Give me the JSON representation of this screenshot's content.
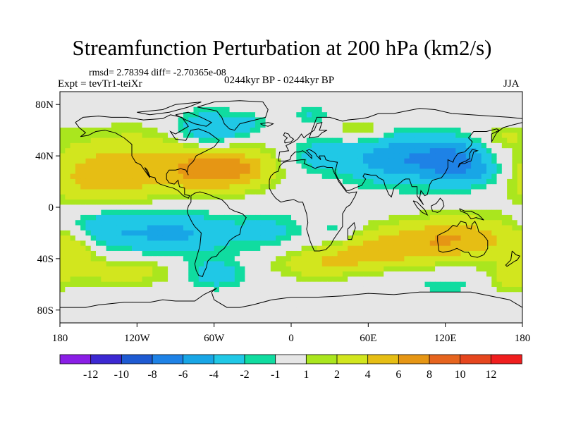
{
  "header": {
    "title": "Streamfunction Perturbation at 200 hPa (km2/s)",
    "stats": "rmsd= 2.78394 diff= -2.70365e-08",
    "experiment": "Expt = tevTr1-teiXr",
    "period": "0244kyr BP - 0244kyr BP",
    "season": "JJA"
  },
  "chart_data": {
    "type": "heatmap",
    "title": "Streamfunction Perturbation at 200 hPa (km2/s)",
    "xlabel": "",
    "ylabel": "",
    "xlim": [
      -180,
      180
    ],
    "ylim": [
      -90,
      90
    ],
    "xticks": [
      {
        "value": -180,
        "label": "180"
      },
      {
        "value": -120,
        "label": "120W"
      },
      {
        "value": -60,
        "label": "60W"
      },
      {
        "value": 0,
        "label": "0"
      },
      {
        "value": 60,
        "label": "60E"
      },
      {
        "value": 120,
        "label": "120E"
      },
      {
        "value": 180,
        "label": "180"
      }
    ],
    "yticks": [
      {
        "value": 80,
        "label": "80N"
      },
      {
        "value": 40,
        "label": "40N"
      },
      {
        "value": 0,
        "label": "0"
      },
      {
        "value": -40,
        "label": "40S"
      },
      {
        "value": -80,
        "label": "80S"
      }
    ],
    "colorbar": {
      "boundaries": [
        -12,
        -10,
        -8,
        -6,
        -4,
        -2,
        -1,
        1,
        2,
        4,
        6,
        8,
        10,
        12
      ],
      "labels": [
        "-12",
        "-10",
        "-8",
        "-6",
        "-4",
        "-2",
        "-1",
        "1",
        "2",
        "4",
        "6",
        "8",
        "10",
        "12"
      ],
      "colors": [
        "#8a1ee6",
        "#3c28d2",
        "#1e5ad2",
        "#1e82e6",
        "#18a6e6",
        "#20c8e6",
        "#10dca0",
        "#e6e6e6",
        "#aae61e",
        "#d2e61e",
        "#e6be14",
        "#e69614",
        "#e6641e",
        "#e6461e",
        "#f01e1e"
      ]
    },
    "field": [
      {
        "lon": -115,
        "lat": 35,
        "value": 4.0,
        "sx": 50,
        "sy": 18
      },
      {
        "lon": -65,
        "lat": 28,
        "value": 4.5,
        "sx": 22,
        "sy": 12
      },
      {
        "lon": -35,
        "lat": 30,
        "value": 3.5,
        "sx": 18,
        "sy": 10
      },
      {
        "lon": -150,
        "lat": 20,
        "value": 3.0,
        "sx": 30,
        "sy": 14
      },
      {
        "lon": -65,
        "lat": 60,
        "value": -5.0,
        "sx": 18,
        "sy": 10
      },
      {
        "lon": -35,
        "lat": 65,
        "value": -2.5,
        "sx": 10,
        "sy": 6
      },
      {
        "lon": 15,
        "lat": 72,
        "value": -2.0,
        "sx": 10,
        "sy": 5
      },
      {
        "lon": 55,
        "lat": 60,
        "value": 3.0,
        "sx": 14,
        "sy": 6
      },
      {
        "lon": 20,
        "lat": 40,
        "value": -2.5,
        "sx": 14,
        "sy": 8
      },
      {
        "lon": 85,
        "lat": 38,
        "value": -5.5,
        "sx": 35,
        "sy": 14
      },
      {
        "lon": 130,
        "lat": 35,
        "value": -5.0,
        "sx": 20,
        "sy": 12
      },
      {
        "lon": 165,
        "lat": 55,
        "value": 2.0,
        "sx": 12,
        "sy": 6
      },
      {
        "lon": 150,
        "lat": 25,
        "value": -1.8,
        "sx": 14,
        "sy": 8
      },
      {
        "lon": -95,
        "lat": -20,
        "value": -4.5,
        "sx": 40,
        "sy": 12
      },
      {
        "lon": -150,
        "lat": -15,
        "value": -2.5,
        "sx": 18,
        "sy": 10
      },
      {
        "lon": -15,
        "lat": -18,
        "value": -2.0,
        "sx": 18,
        "sy": 10
      },
      {
        "lon": -60,
        "lat": -52,
        "value": -3.5,
        "sx": 16,
        "sy": 8
      },
      {
        "lon": 35,
        "lat": -20,
        "value": -1.8,
        "sx": 12,
        "sy": 8
      },
      {
        "lon": 125,
        "lat": -25,
        "value": 6.0,
        "sx": 40,
        "sy": 12
      },
      {
        "lon": 60,
        "lat": -35,
        "value": 4.0,
        "sx": 28,
        "sy": 9
      },
      {
        "lon": 20,
        "lat": -45,
        "value": 3.0,
        "sx": 25,
        "sy": 8
      },
      {
        "lon": -130,
        "lat": -50,
        "value": 3.0,
        "sx": 30,
        "sy": 8
      },
      {
        "lon": -170,
        "lat": -35,
        "value": 3.0,
        "sx": 12,
        "sy": 10
      },
      {
        "lon": 170,
        "lat": -55,
        "value": 2.5,
        "sx": 12,
        "sy": 8
      },
      {
        "lon": 120,
        "lat": -60,
        "value": -1.5,
        "sx": 20,
        "sy": 6
      },
      {
        "lon": -60,
        "lat": -75,
        "value": 0.5,
        "sx": 40,
        "sy": 6
      }
    ]
  }
}
